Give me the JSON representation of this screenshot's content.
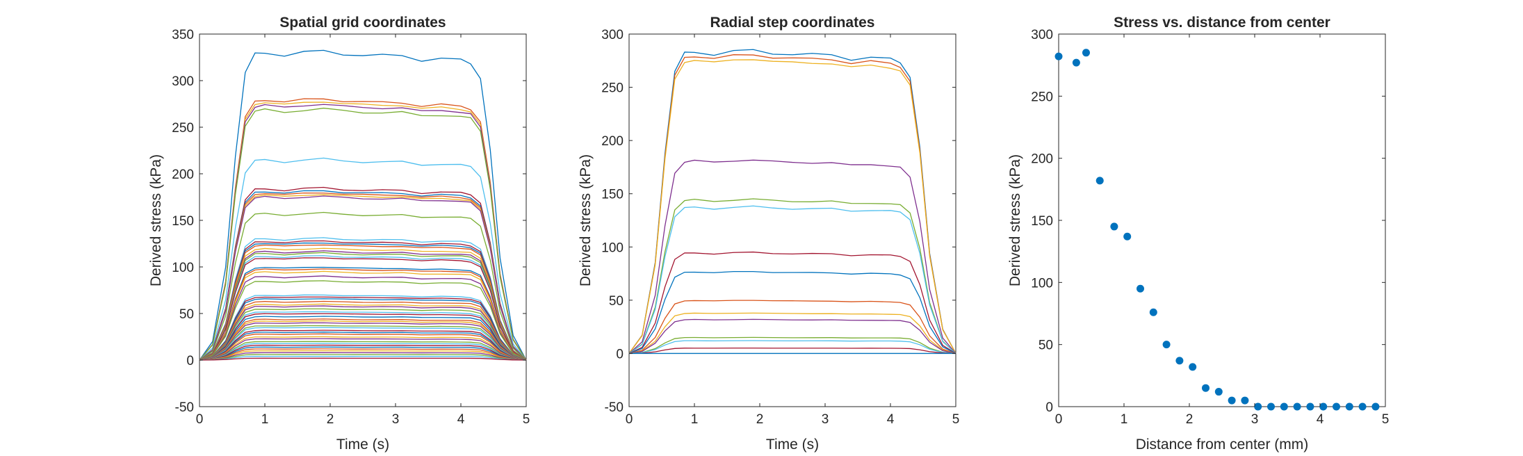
{
  "chart_data": [
    {
      "type": "line",
      "title": "Spatial grid coordinates",
      "xlabel": "Time (s)",
      "ylabel": "Derived stress (kPa)",
      "xlim": [
        0,
        5
      ],
      "ylim": [
        -50,
        350
      ],
      "xticks": [
        0,
        1,
        2,
        3,
        4,
        5
      ],
      "yticks": [
        -50,
        0,
        50,
        100,
        150,
        200,
        250,
        300,
        350
      ],
      "grid": false,
      "time_profile": {
        "x": [
          0,
          0.2,
          0.4,
          0.55,
          0.7,
          0.85,
          1.0,
          1.3,
          1.6,
          1.9,
          2.2,
          2.5,
          2.8,
          3.1,
          3.4,
          3.7,
          4.0,
          4.15,
          4.3,
          4.45,
          4.6,
          4.8,
          5.0
        ],
        "shape": [
          0,
          0.06,
          0.3,
          0.66,
          0.93,
          0.99,
          0.995,
          0.985,
          0.995,
          1.0,
          0.99,
          0.985,
          0.985,
          0.985,
          0.97,
          0.975,
          0.97,
          0.96,
          0.91,
          0.68,
          0.33,
          0.08,
          0
        ]
      },
      "series_plateaus": [
        332,
        281,
        278,
        275,
        270,
        216,
        185,
        182,
        180,
        178,
        176,
        158,
        131,
        128,
        126,
        124,
        120,
        117,
        115,
        112,
        110,
        100,
        98,
        95,
        90,
        85,
        70,
        68,
        66,
        63,
        60,
        58,
        55,
        52,
        50,
        47,
        44,
        42,
        40,
        37,
        35,
        32,
        30,
        28,
        25,
        23,
        20,
        18,
        16,
        14,
        12,
        10,
        8,
        6,
        4,
        2
      ]
    },
    {
      "type": "line",
      "title": "Radial step coordinates",
      "xlabel": "Time (s)",
      "ylabel": "Derived stress (kPa)",
      "xlim": [
        0,
        5
      ],
      "ylim": [
        -50,
        300
      ],
      "xticks": [
        0,
        1,
        2,
        3,
        4,
        5
      ],
      "yticks": [
        -50,
        0,
        50,
        100,
        150,
        200,
        250,
        300
      ],
      "grid": false,
      "time_profile": {
        "x": [
          0,
          0.2,
          0.4,
          0.55,
          0.7,
          0.85,
          1.0,
          1.3,
          1.6,
          1.9,
          2.2,
          2.5,
          2.8,
          3.1,
          3.4,
          3.7,
          4.0,
          4.15,
          4.3,
          4.45,
          4.6,
          4.8,
          5.0
        ],
        "shape": [
          0,
          0.06,
          0.3,
          0.66,
          0.93,
          0.99,
          0.995,
          0.985,
          0.995,
          1.0,
          0.99,
          0.985,
          0.985,
          0.985,
          0.97,
          0.975,
          0.97,
          0.96,
          0.91,
          0.68,
          0.33,
          0.08,
          0
        ]
      },
      "series_plateaus": [
        285,
        281,
        277,
        182,
        145,
        138,
        95,
        77,
        50,
        38,
        32,
        15,
        12,
        5,
        0
      ]
    },
    {
      "type": "scatter",
      "title": "Stress vs. distance from center",
      "xlabel": "Distance from center (mm)",
      "ylabel": "Derived stress (kPa)",
      "xlim": [
        0,
        5
      ],
      "ylim": [
        0,
        300
      ],
      "xticks": [
        0,
        1,
        2,
        3,
        4,
        5
      ],
      "yticks": [
        0,
        50,
        100,
        150,
        200,
        250,
        300
      ],
      "grid": false,
      "x": [
        0.0,
        0.27,
        0.42,
        0.63,
        0.85,
        1.05,
        1.25,
        1.45,
        1.65,
        1.85,
        2.05,
        2.25,
        2.45,
        2.65,
        2.85,
        3.05,
        3.25,
        3.45,
        3.65,
        3.85,
        4.05,
        4.25,
        4.45,
        4.65,
        4.85
      ],
      "y": [
        282,
        277,
        285,
        182,
        145,
        137,
        95,
        76,
        50,
        37,
        32,
        15,
        12,
        5,
        5,
        0,
        0,
        0,
        0,
        0,
        0,
        0,
        0,
        0,
        0
      ]
    }
  ],
  "colors": {
    "series_cycle": [
      "#0072BD",
      "#D95319",
      "#EDB120",
      "#7E2F8E",
      "#77AC30",
      "#4DBEEE",
      "#A2142F"
    ],
    "scatter_marker": "#0072BD",
    "axes": "#262626"
  }
}
